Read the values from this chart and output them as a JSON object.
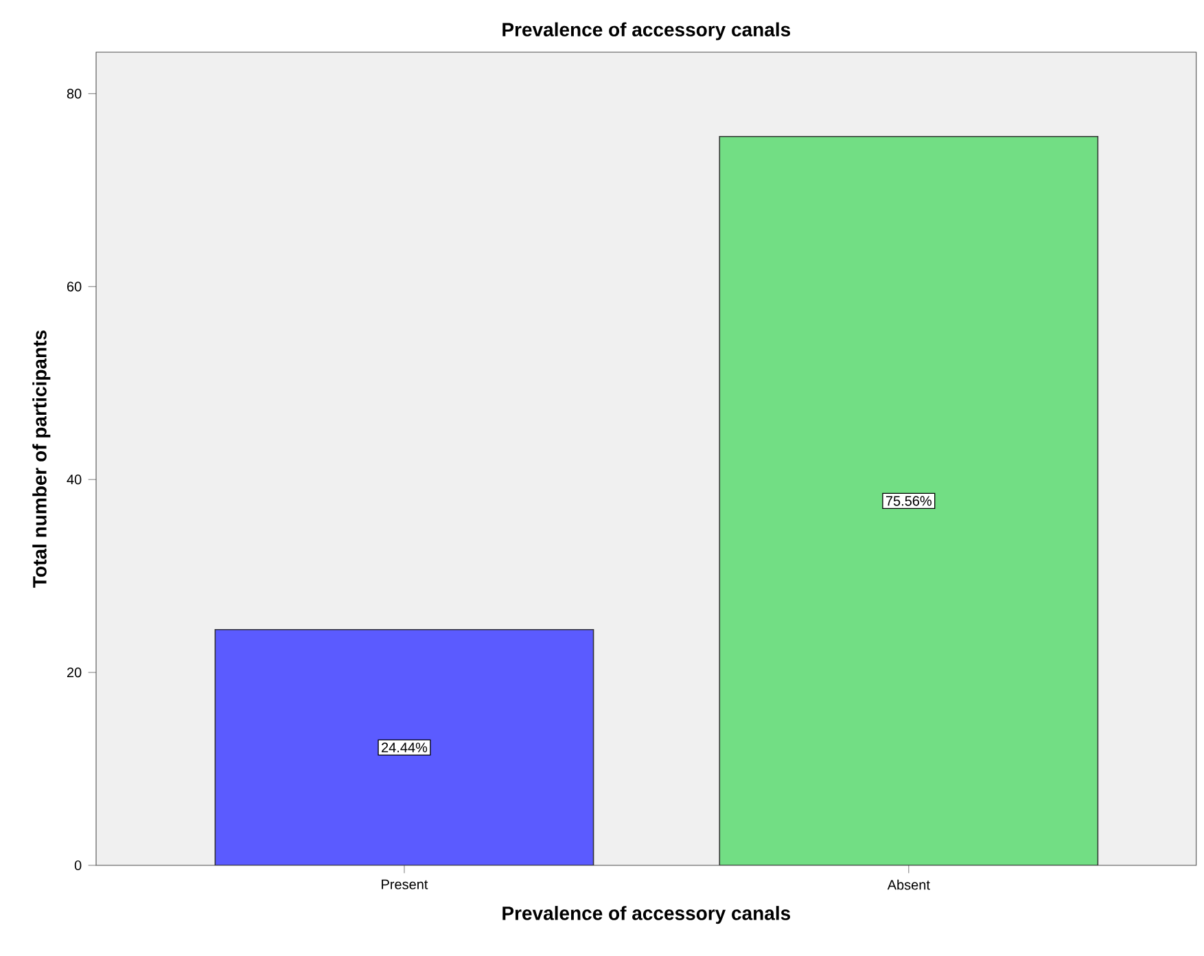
{
  "chart_data": {
    "type": "bar",
    "title": "Prevalence of accessory canals",
    "xlabel": "Prevalence of accessory canals",
    "ylabel": "Total number of participants",
    "categories": [
      "Present",
      "Absent"
    ],
    "values": [
      24.44,
      75.56
    ],
    "colors": [
      "#5b5bff",
      "#72de84"
    ],
    "value_labels": [
      "24.44%",
      "75.56%"
    ],
    "ylim": [
      0,
      84.3
    ],
    "yticks": [
      0,
      20,
      40,
      60,
      80
    ]
  }
}
